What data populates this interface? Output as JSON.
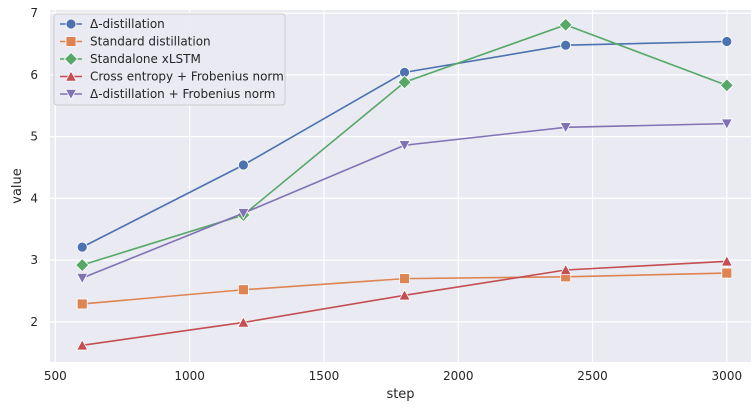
{
  "chart_data": {
    "type": "line",
    "title": "",
    "xlabel": "step",
    "ylabel": "value",
    "xlim": [
      480,
      3090
    ],
    "ylim": [
      1.35,
      7.05
    ],
    "xticks": [
      500,
      1000,
      1500,
      2000,
      2500,
      3000
    ],
    "yticks": [
      2,
      3,
      4,
      5,
      6,
      7
    ],
    "x": [
      600,
      1200,
      1800,
      2400,
      3000
    ],
    "grid": true,
    "legend_position": "top-left",
    "background": "#eaeaf2",
    "series": [
      {
        "name": "Δ-distillation",
        "color": "#4c72b0",
        "marker": "circle",
        "values": [
          3.21,
          4.54,
          6.04,
          6.48,
          6.54
        ]
      },
      {
        "name": "Standard distillation",
        "color": "#dd8452",
        "marker": "square",
        "values": [
          2.29,
          2.52,
          2.7,
          2.73,
          2.79
        ]
      },
      {
        "name": "Standalone xLSTM",
        "color": "#55a868",
        "marker": "diamond",
        "values": [
          2.92,
          3.73,
          5.88,
          6.81,
          5.83
        ]
      },
      {
        "name": "Cross entropy + Frobenius norm",
        "color": "#c44e52",
        "marker": "triangle-up",
        "values": [
          1.62,
          1.99,
          2.43,
          2.84,
          2.98
        ]
      },
      {
        "name": "Δ-distillation + Frobenius norm",
        "color": "#8172b3",
        "marker": "triangle-down",
        "values": [
          2.71,
          3.76,
          4.86,
          5.15,
          5.21
        ]
      }
    ]
  }
}
